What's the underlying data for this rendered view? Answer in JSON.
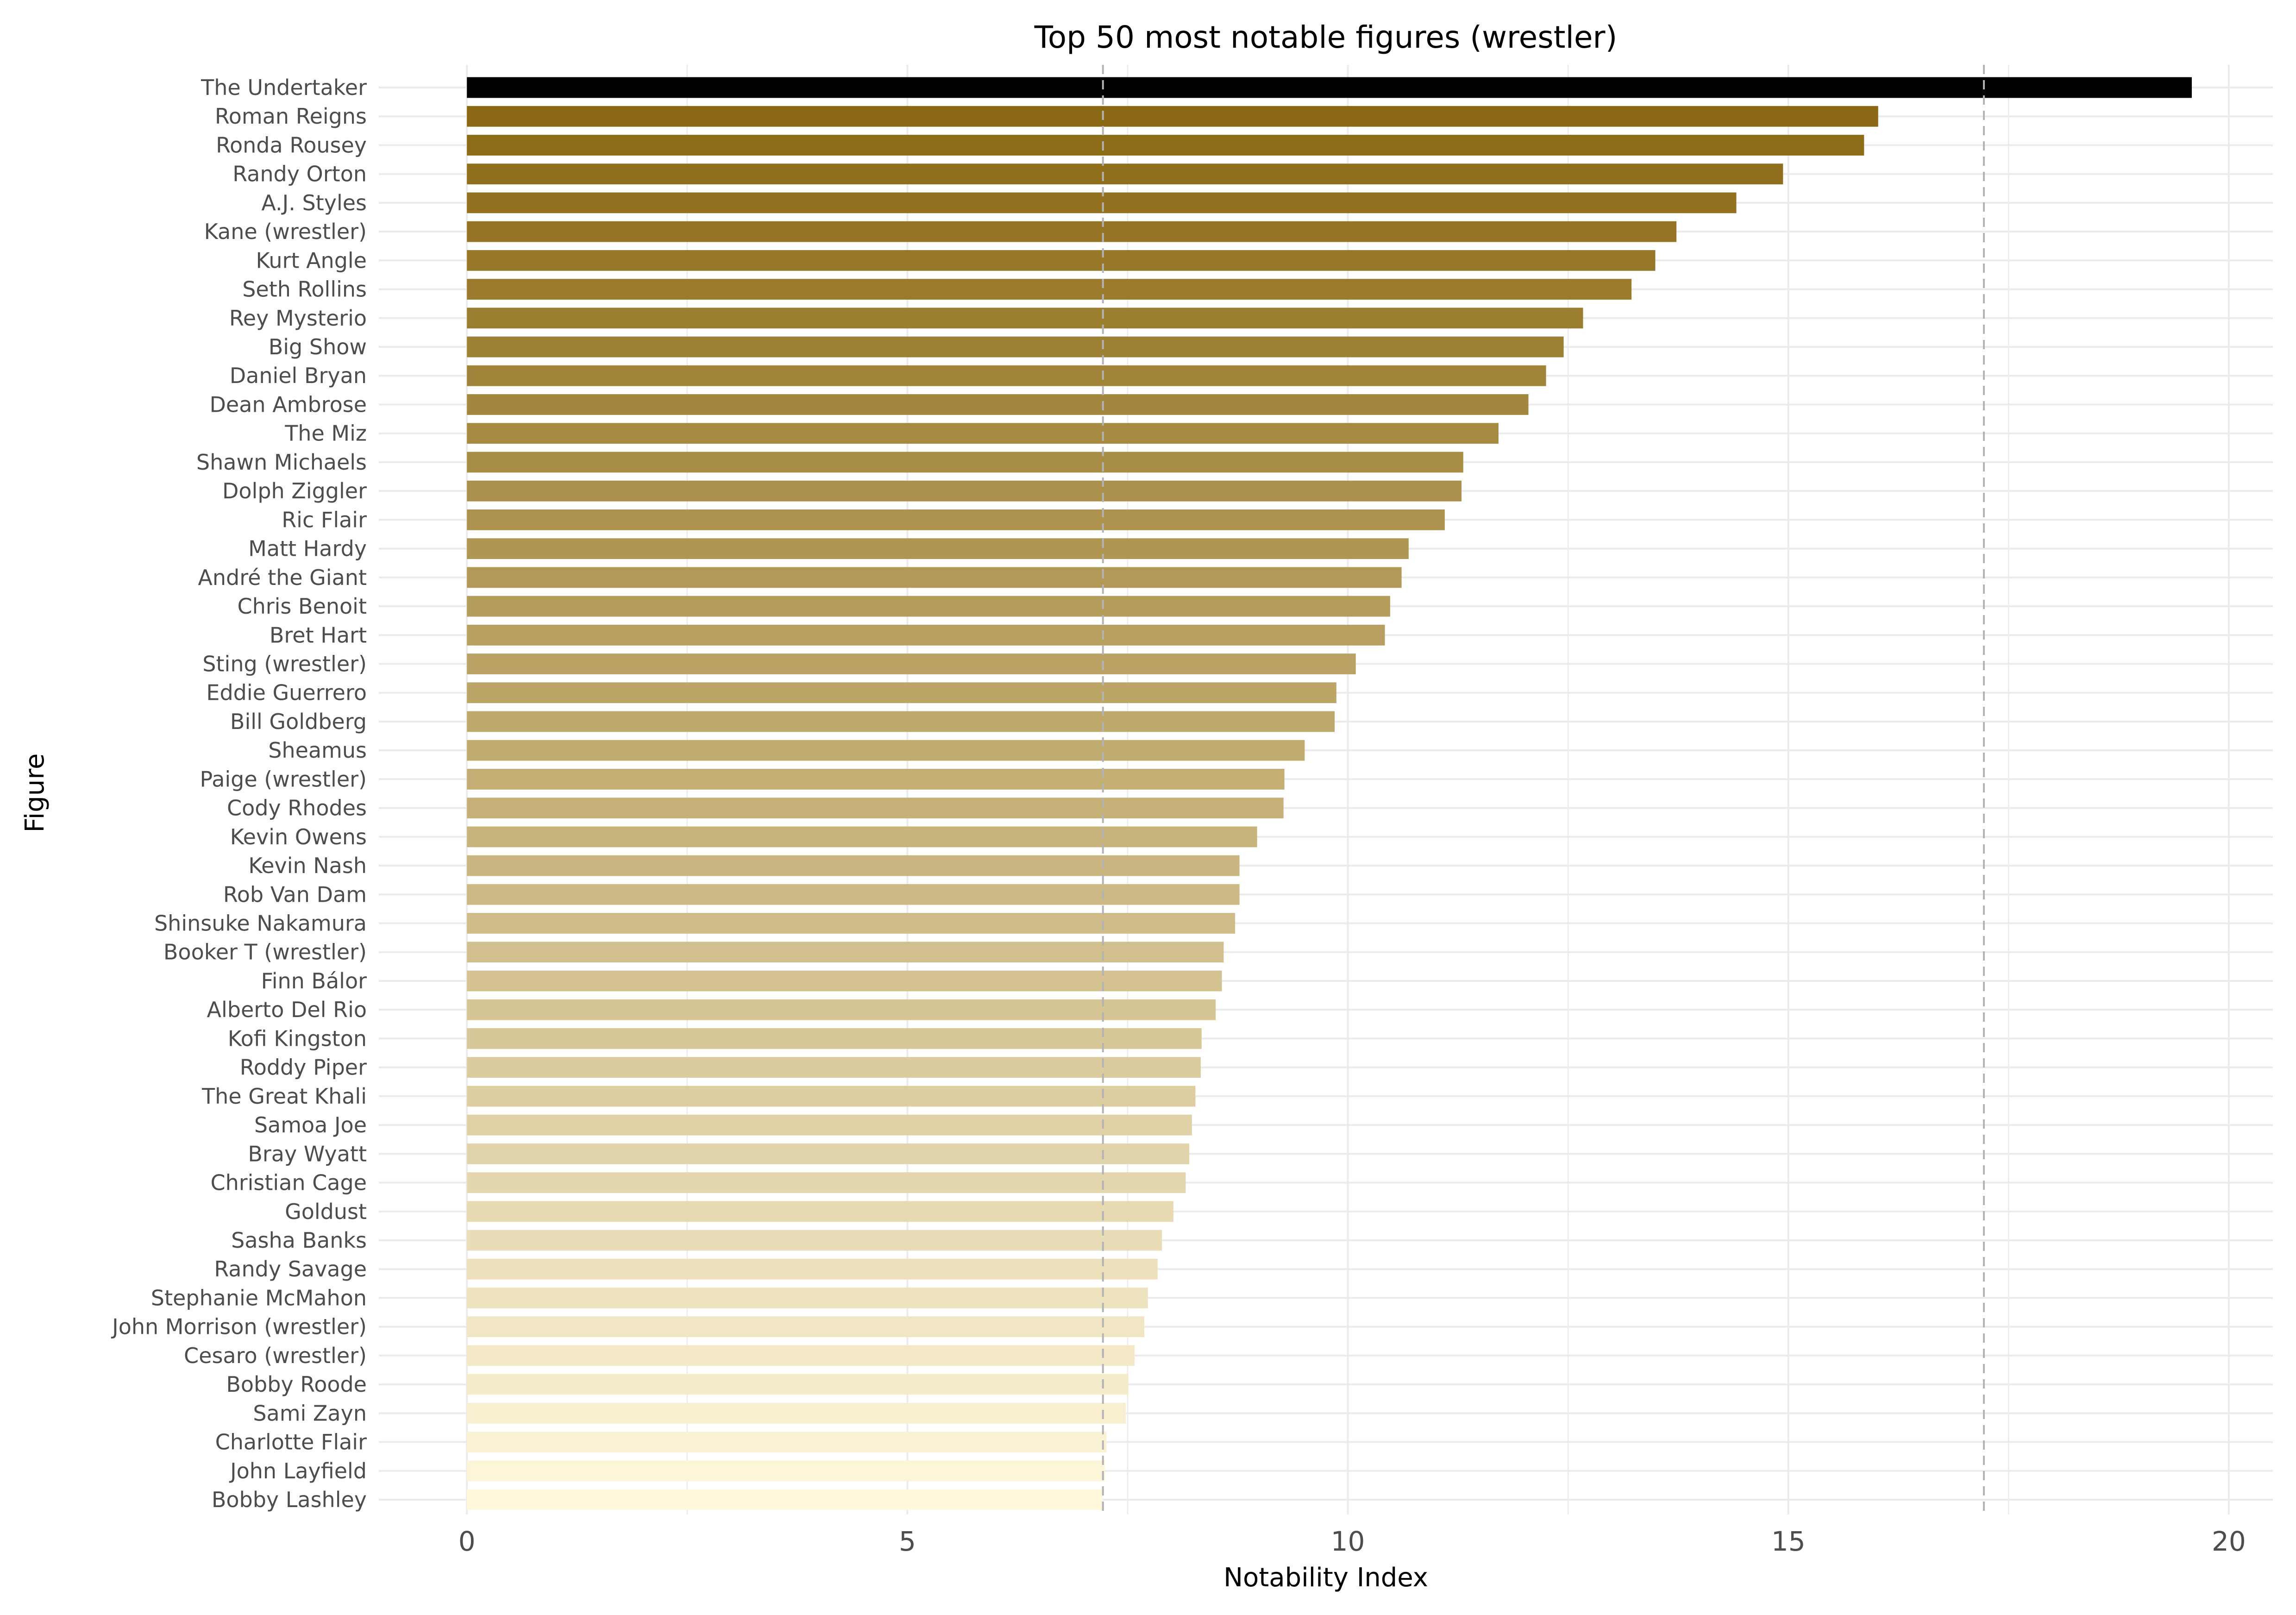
{
  "chart_data": {
    "type": "bar",
    "orientation": "horizontal",
    "title": "Top 50 most notable figures (wrestler)",
    "xlabel": "Notability Index",
    "ylabel": "Figure",
    "xlim": [
      -1.0,
      20.5
    ],
    "xticks": [
      0,
      5,
      10,
      15,
      20
    ],
    "grid": true,
    "reference_lines": [
      7.22,
      17.22
    ],
    "colors": {
      "highlight": "#000000",
      "dark": "#8b6914",
      "light": "#fff8dc",
      "grid": "#ebebeb",
      "refline": "#b3b3b3"
    },
    "categories": [
      "The Undertaker",
      "Roman Reigns",
      "Ronda Rousey",
      "Randy Orton",
      "A.J. Styles",
      "Kane (wrestler)",
      "Kurt Angle",
      "Seth Rollins",
      "Rey Mysterio",
      "Big Show",
      "Daniel Bryan",
      "Dean Ambrose",
      "The Miz",
      "Shawn Michaels",
      "Dolph Ziggler",
      "Ric Flair",
      "Matt Hardy",
      "André the Giant",
      "Chris Benoit",
      "Bret Hart",
      "Sting (wrestler)",
      "Eddie Guerrero",
      "Bill Goldberg",
      "Sheamus",
      "Paige (wrestler)",
      "Cody Rhodes",
      "Kevin Owens",
      "Kevin Nash",
      "Rob Van Dam",
      "Shinsuke Nakamura",
      "Booker T (wrestler)",
      "Finn Bálor",
      "Alberto Del Rio",
      "Kofi Kingston",
      "Roddy Piper",
      "The Great Khali",
      "Samoa Joe",
      "Bray Wyatt",
      "Christian Cage",
      "Goldust",
      "Sasha Banks",
      "Randy Savage",
      "Stephanie McMahon",
      "John Morrison (wrestler)",
      "Cesaro (wrestler)",
      "Bobby Roode",
      "Sami Zayn",
      "Charlotte Flair",
      "John Layfield",
      "Bobby Lashley"
    ],
    "values": [
      19.58,
      16.02,
      15.86,
      14.94,
      14.41,
      13.73,
      13.49,
      13.22,
      12.67,
      12.45,
      12.25,
      12.05,
      11.71,
      11.31,
      11.29,
      11.1,
      10.69,
      10.61,
      10.48,
      10.42,
      10.09,
      9.87,
      9.85,
      9.51,
      9.28,
      9.27,
      8.97,
      8.77,
      8.77,
      8.72,
      8.59,
      8.57,
      8.5,
      8.34,
      8.33,
      8.27,
      8.23,
      8.2,
      8.16,
      8.02,
      7.89,
      7.84,
      7.73,
      7.69,
      7.58,
      7.51,
      7.48,
      7.26,
      7.24,
      7.22
    ]
  }
}
